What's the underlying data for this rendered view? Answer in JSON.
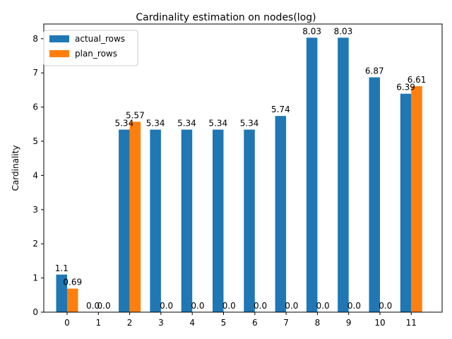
{
  "chart_data": {
    "type": "bar",
    "title": "Cardinality estimation on nodes(log)",
    "xlabel": "",
    "ylabel": "Cardinality",
    "categories": [
      "0",
      "1",
      "2",
      "3",
      "4",
      "5",
      "6",
      "7",
      "8",
      "9",
      "10",
      "11"
    ],
    "series": [
      {
        "name": "actual_rows",
        "color": "#1f77b4",
        "values": [
          1.1,
          0.0,
          5.34,
          5.34,
          5.34,
          5.34,
          5.34,
          5.74,
          8.03,
          8.03,
          6.87,
          6.39
        ],
        "labels": [
          "1.1",
          "0.0",
          "5.34",
          "5.34",
          "5.34",
          "5.34",
          "5.34",
          "5.74",
          "8.03",
          "8.03",
          "6.87",
          "6.39"
        ]
      },
      {
        "name": "plan_rows",
        "color": "#ff7f0e",
        "values": [
          0.69,
          0.0,
          5.57,
          0.0,
          0.0,
          0.0,
          0.0,
          0.0,
          0.0,
          0.0,
          0.0,
          6.61
        ],
        "labels": [
          "0.69",
          "0.0",
          "5.57",
          "0.0",
          "0.0",
          "0.0",
          "0.0",
          "0.0",
          "0.0",
          "0.0",
          "0.0",
          "6.61"
        ]
      }
    ],
    "yticks": [
      "0",
      "1",
      "2",
      "3",
      "4",
      "5",
      "6",
      "7",
      "8"
    ],
    "ylim": [
      0,
      8.43
    ],
    "grid": false,
    "legend": "top-left"
  }
}
